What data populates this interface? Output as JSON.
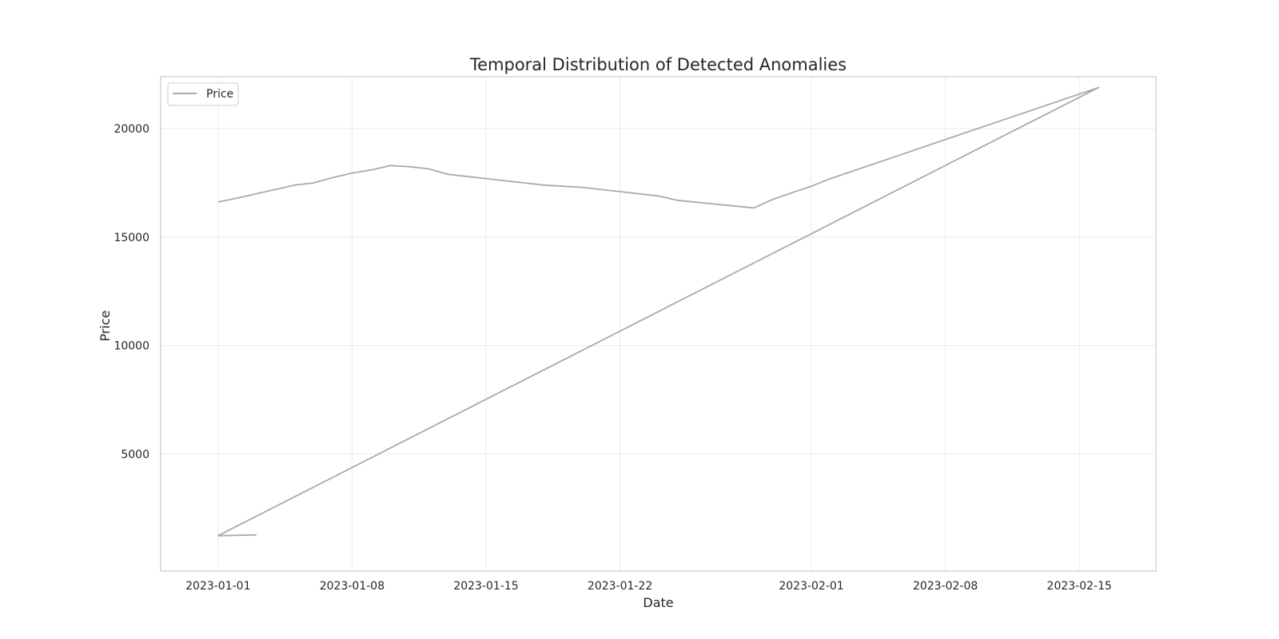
{
  "chart_data": {
    "type": "line",
    "title": "Temporal Distribution of Detected Anomalies",
    "xlabel": "Date",
    "ylabel": "Price",
    "x_axis_type": "date",
    "xlim": [
      "2022-12-29",
      "2023-02-19"
    ],
    "ylim": [
      -400,
      22400
    ],
    "xticks": [
      "2023-01-01",
      "2023-01-08",
      "2023-01-15",
      "2023-01-22",
      "2023-02-01",
      "2023-02-08",
      "2023-02-15"
    ],
    "yticks": [
      5000,
      10000,
      15000,
      20000
    ],
    "grid": true,
    "legend": {
      "position": "top-left",
      "entries": [
        "Price"
      ]
    },
    "series": [
      {
        "name": "Price",
        "color": "#aaaaaa",
        "points": [
          [
            "2023-01-03",
            1270
          ],
          [
            "2023-01-01",
            1230
          ],
          [
            "2023-02-16",
            21900
          ],
          [
            "2023-02-02",
            17700
          ],
          [
            "2023-02-01",
            17350
          ],
          [
            "2023-01-31",
            17050
          ],
          [
            "2023-01-30",
            16750
          ],
          [
            "2023-01-29",
            16350
          ],
          [
            "2023-01-25",
            16700
          ],
          [
            "2023-01-24",
            16900
          ],
          [
            "2023-01-22",
            17100
          ],
          [
            "2023-01-20",
            17300
          ],
          [
            "2023-01-18",
            17400
          ],
          [
            "2023-01-15",
            17700
          ],
          [
            "2023-01-13",
            17900
          ],
          [
            "2023-01-12",
            18150
          ],
          [
            "2023-01-11",
            18250
          ],
          [
            "2023-01-10",
            18300
          ],
          [
            "2023-01-09",
            18100
          ],
          [
            "2023-01-08",
            17950
          ],
          [
            "2023-01-07",
            17750
          ],
          [
            "2023-01-06",
            17500
          ],
          [
            "2023-01-05",
            17400
          ],
          [
            "2023-01-02",
            16800
          ],
          [
            "2023-01-01",
            16620
          ]
        ]
      }
    ]
  }
}
